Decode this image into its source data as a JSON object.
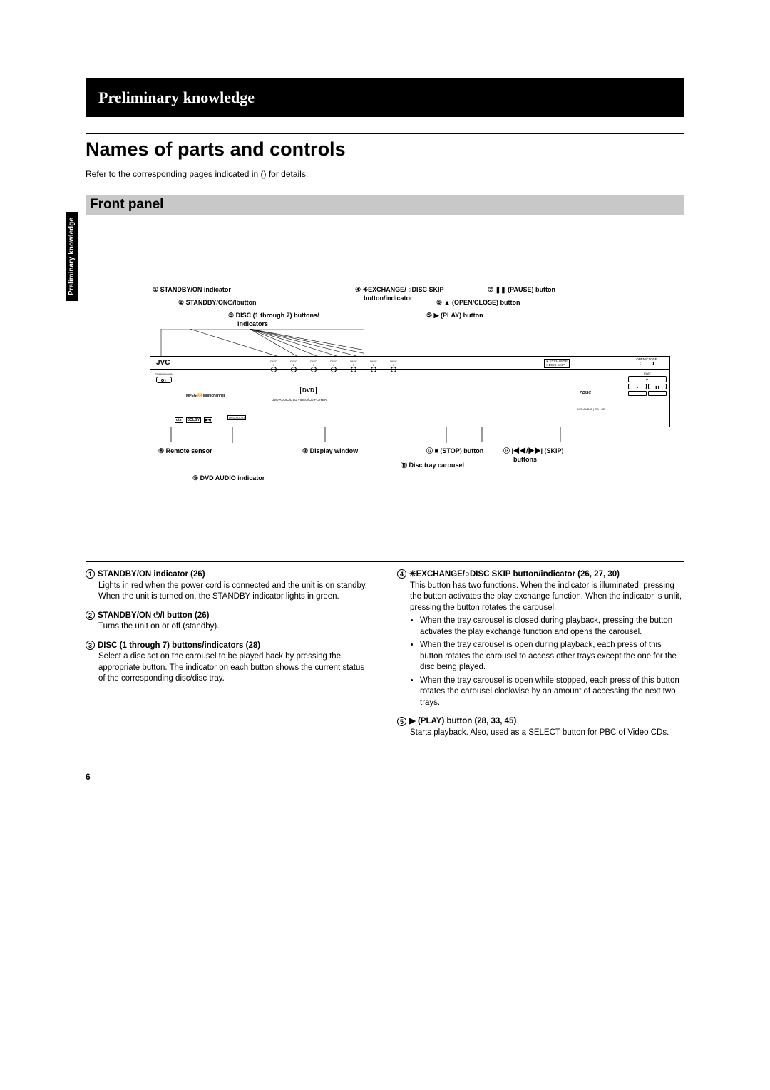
{
  "header": "Preliminary knowledge",
  "title": "Names of parts and controls",
  "intro": "Refer to the corresponding pages indicated in () for details.",
  "subhead": "Front panel",
  "side_tab": "Preliminary knowledge",
  "page_number": "6",
  "diagram": {
    "brand": "JVC",
    "disc_labels": [
      "DISC 1",
      "DISC 2",
      "DISC 3",
      "DISC 4",
      "DISC 5",
      "DISC 6",
      "DISC 7"
    ],
    "exchange_lines": [
      "✳ EXCHANGE",
      "○ DISC SKIP"
    ],
    "open_close_label": "OPEN/CLOSE",
    "standby_label": "STANDBY/ON",
    "mpeg_label": "MPEG 🔀 Multichannel",
    "dvd_logo": "DVD",
    "center_label": "DVD AUDIO/DVD VIDEO/CD PLAYER",
    "seven_disc": "7 DISC",
    "play_exchange_label": "PLAY & EXCHANGE",
    "dvd_audio_tag": "DVD AUDIO",
    "play_label": "PLAY",
    "stop_label": "STOP",
    "pause_label": "PAUSE",
    "skip_label": "SKIP",
    "format_row": "DVD AUDIO | CD | CD"
  },
  "callouts_top": {
    "c1": "① STANDBY/ON indicator",
    "c2": "② STANDBY/ON⏻/Ibutton",
    "c3": "③ DISC (1 through 7) buttons/",
    "c3b": "indicators",
    "c4a": "④ ✳EXCHANGE/ ○DISC SKIP",
    "c4b": "button/indicator",
    "c5": "⑤ ▶ (PLAY) button",
    "c6": "⑥ ▲ (OPEN/CLOSE) button",
    "c7": "⑦ ❚❚ (PAUSE) button"
  },
  "callouts_bottom": {
    "c8": "⑧ Remote sensor",
    "c9": "⑨ DVD AUDIO indicator",
    "c10": "⑩ Display window",
    "c11": "⑪ Disc tray carousel",
    "c12": "⑫ ■ (STOP) button",
    "c13a": "⑬ |◀◀/▶▶| (SKIP)",
    "c13b": "buttons"
  },
  "descriptions": {
    "left": [
      {
        "n": "1",
        "title": "STANDBY/ON indicator (26)",
        "body": "Lights in red when the power cord is connected and the unit is on standby. When the unit is turned on, the STANDBY indicator lights in green."
      },
      {
        "n": "2",
        "title": "STANDBY/ON ⏻/I button (26)",
        "body": "Turns the unit on or off (standby)."
      },
      {
        "n": "3",
        "title": "DISC (1 through 7) buttons/indicators (28)",
        "body": "Select a disc set on the carousel to be played back by pressing the appropriate button. The indicator on each button shows the current status of the corresponding disc/disc tray."
      }
    ],
    "right": [
      {
        "n": "4",
        "title": "✳EXCHANGE/○DISC SKIP button/indicator (26, 27, 30)",
        "body": "This button has two functions. When the indicator is illuminated, pressing the button activates the play exchange function. When the indicator is unlit, pressing the button rotates the carousel.",
        "bullets": [
          "When the tray carousel is closed during playback, pressing the button activates the play exchange function and opens the carousel.",
          "When the tray carousel is open during playback, each press of this button rotates the carousel to access other trays except the one for the disc being played.",
          "When the tray carousel is open while stopped, each press of this button rotates the carousel clockwise by an amount of accessing the next two trays."
        ]
      },
      {
        "n": "5",
        "title": "▶ (PLAY) button (28, 33, 45)",
        "body": "Starts playback. Also, used as a SELECT button for PBC of Video CDs."
      }
    ]
  }
}
